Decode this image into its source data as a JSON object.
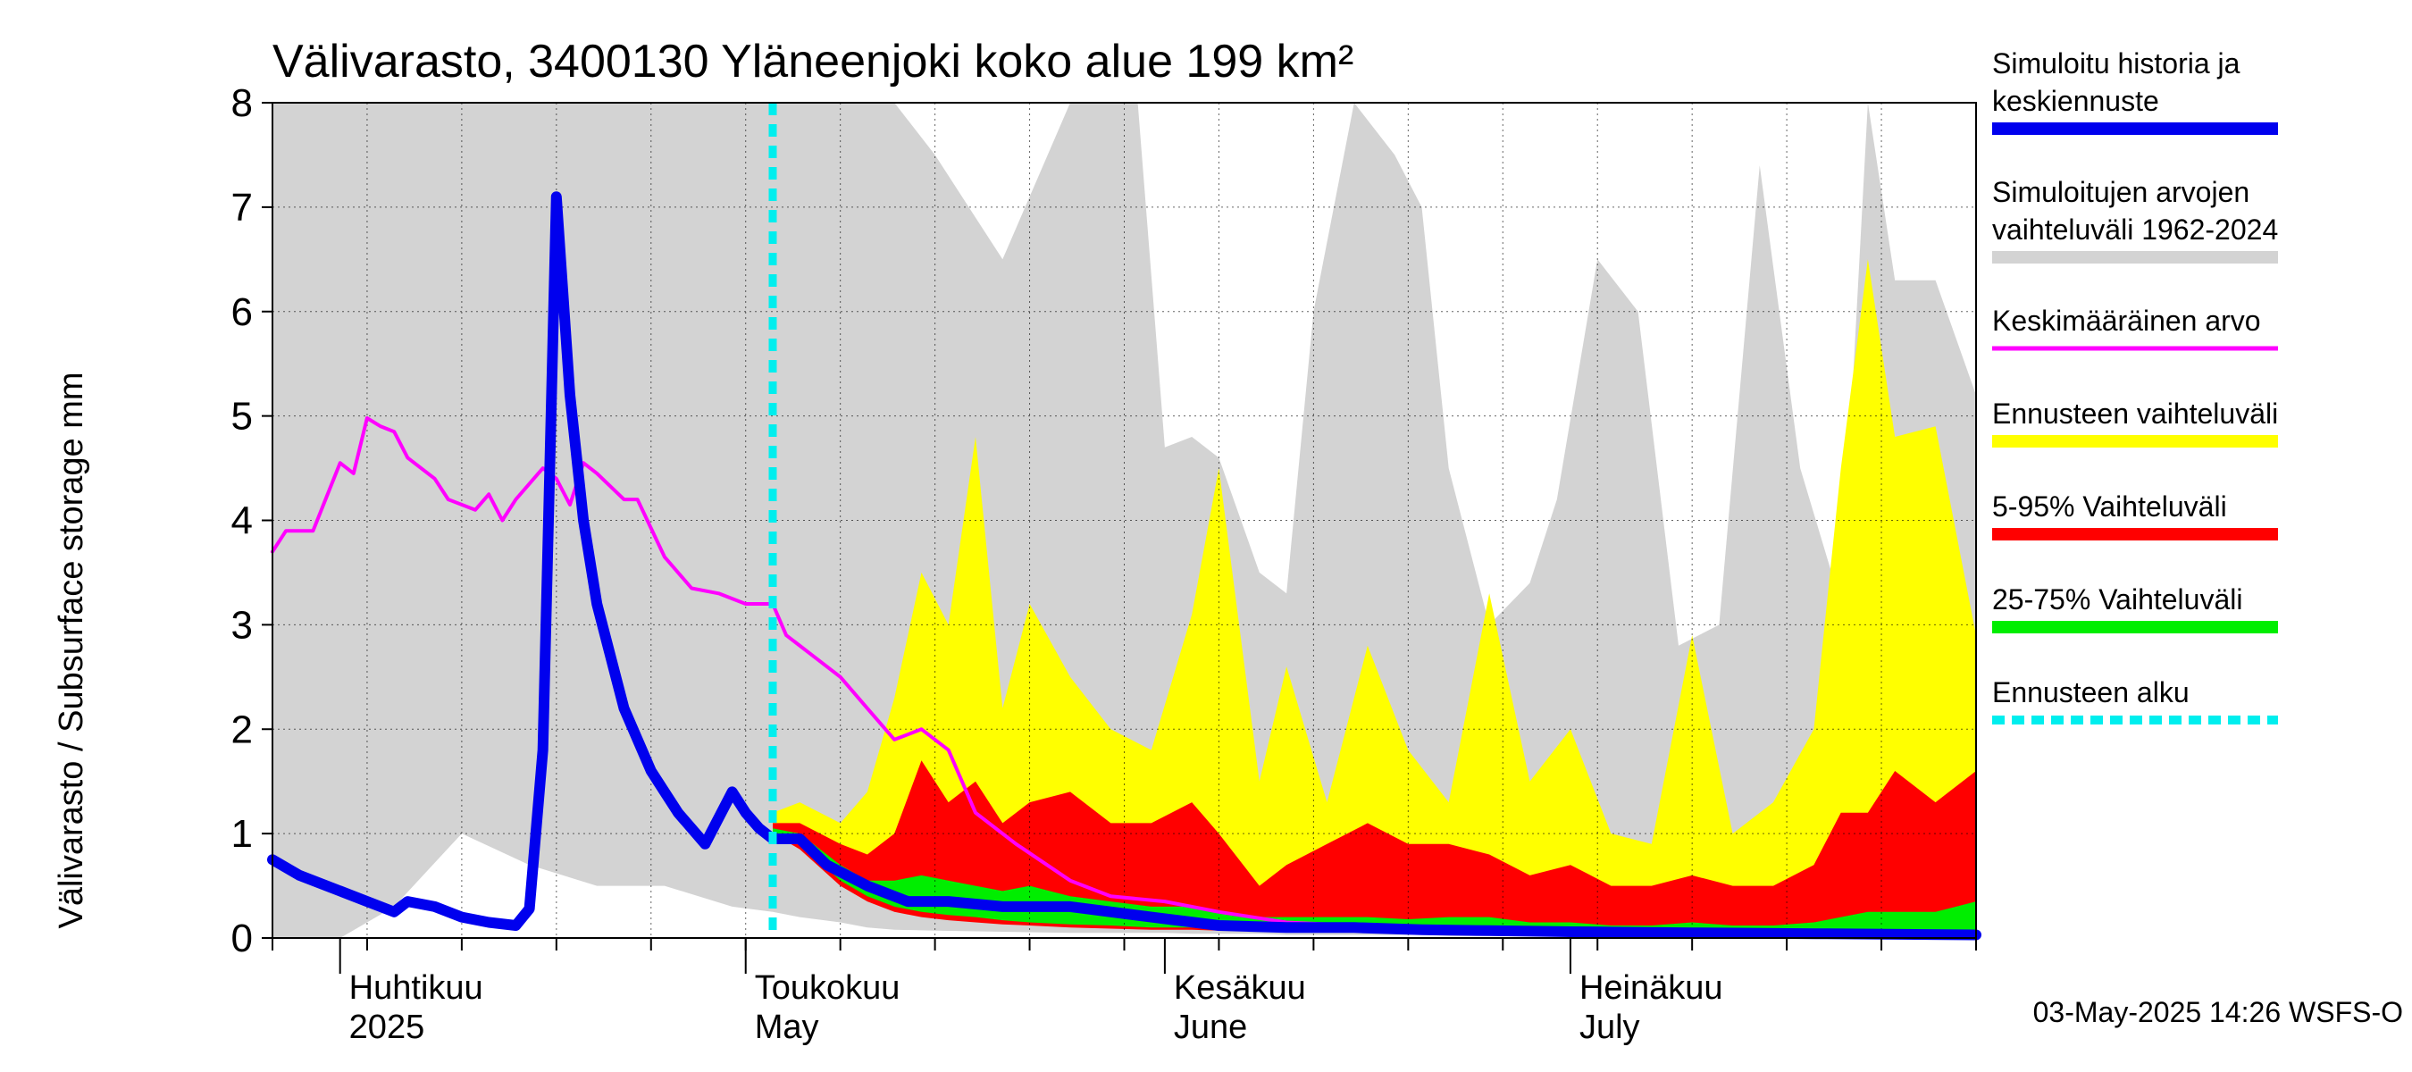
{
  "chart_data": {
    "type": "area",
    "title": "Välivarasto, 3400130 Yläneenjoki koko alue 199 km²",
    "ylabel": "Välivarasto / Subsurface storage  mm",
    "ylim": [
      0,
      8
    ],
    "yticks": [
      "0",
      "1",
      "2",
      "3",
      "4",
      "5",
      "6",
      "7",
      "8"
    ],
    "xlim": [
      "2025-03-27",
      "2025-07-31"
    ],
    "month_ticks": [
      {
        "date": "2025-04-01",
        "fi": "Huhtikuu",
        "en": "2025"
      },
      {
        "date": "2025-05-01",
        "fi": "Toukokuu",
        "en": "May"
      },
      {
        "date": "2025-06-01",
        "fi": "Kesäkuu",
        "en": "June"
      },
      {
        "date": "2025-07-01",
        "fi": "Heinäkuu",
        "en": "July"
      }
    ],
    "forecast_start": "2025-05-03",
    "footer": "03-May-2025 14:26 WSFS-O",
    "grid": true,
    "legend_position": "right",
    "colors": {
      "history_range": "#d3d3d3",
      "forecast_range": "#ffff00",
      "p5_95": "#ff0000",
      "p25_75": "#00ee00",
      "simulated": "#0000ee",
      "mean": "#ff00ff",
      "forecast_start": "#00eeee"
    },
    "legend": [
      {
        "key": "simulated",
        "lines": [
          "Simuloitu historia ja",
          "keskiennuste"
        ]
      },
      {
        "key": "history_range",
        "lines": [
          "Simuloitujen arvojen",
          "vaihteluväli 1962-2024"
        ]
      },
      {
        "key": "mean",
        "lines": [
          "Keskimääräinen arvo"
        ]
      },
      {
        "key": "forecast_range",
        "lines": [
          "Ennusteen vaihteluväli"
        ]
      },
      {
        "key": "p5_95",
        "lines": [
          "5-95% Vaihteluväli"
        ]
      },
      {
        "key": "p25_75",
        "lines": [
          "25-75% Vaihteluväli"
        ]
      },
      {
        "key": "forecast_start",
        "lines": [
          "Ennusteen alku"
        ]
      }
    ],
    "series": {
      "history_range": {
        "x": [
          "2025-03-27",
          "2025-04-01",
          "2025-04-05",
          "2025-04-10",
          "2025-04-15",
          "2025-04-20",
          "2025-04-25",
          "2025-04-30",
          "2025-05-03",
          "2025-05-05",
          "2025-05-08",
          "2025-05-10",
          "2025-05-12",
          "2025-05-15",
          "2025-05-20",
          "2025-05-25",
          "2025-05-30",
          "2025-06-01",
          "2025-06-03",
          "2025-06-05",
          "2025-06-08",
          "2025-06-10",
          "2025-06-12",
          "2025-06-15",
          "2025-06-18",
          "2025-06-20",
          "2025-06-22",
          "2025-06-25",
          "2025-06-28",
          "2025-06-30",
          "2025-07-03",
          "2025-07-06",
          "2025-07-09",
          "2025-07-12",
          "2025-07-15",
          "2025-07-18",
          "2025-07-21",
          "2025-07-23",
          "2025-07-25",
          "2025-07-28",
          "2025-07-31"
        ],
        "upper": [
          8,
          8,
          8,
          8,
          8,
          8,
          8,
          8,
          8,
          8,
          8,
          8,
          8,
          7.5,
          6.5,
          8,
          8,
          4.7,
          4.8,
          4.6,
          3.5,
          3.3,
          6,
          8,
          7.5,
          7,
          4.5,
          3,
          3.4,
          4.2,
          6.5,
          6,
          2.8,
          3,
          7.4,
          4.5,
          3.2,
          8,
          6.3,
          6.3,
          5.2
        ],
        "lower": [
          0,
          0,
          0.3,
          1,
          0.7,
          0.5,
          0.5,
          0.3,
          0.25,
          0.2,
          0.15,
          0.1,
          0.08,
          0.07,
          0.06,
          0.05,
          0.05,
          0.05,
          0.04,
          0.04,
          0.04,
          0.03,
          0.03,
          0.03,
          0.03,
          0.03,
          0.02,
          0.02,
          0.02,
          0.02,
          0.02,
          0.02,
          0.02,
          0.02,
          0.02,
          0.02,
          0.02,
          0.02,
          0.02,
          0.02,
          0.02
        ]
      },
      "forecast_range": {
        "x": [
          "2025-05-03",
          "2025-05-05",
          "2025-05-08",
          "2025-05-10",
          "2025-05-12",
          "2025-05-14",
          "2025-05-16",
          "2025-05-18",
          "2025-05-20",
          "2025-05-22",
          "2025-05-25",
          "2025-05-28",
          "2025-05-31",
          "2025-06-03",
          "2025-06-05",
          "2025-06-08",
          "2025-06-10",
          "2025-06-13",
          "2025-06-16",
          "2025-06-19",
          "2025-06-22",
          "2025-06-25",
          "2025-06-28",
          "2025-07-01",
          "2025-07-04",
          "2025-07-07",
          "2025-07-10",
          "2025-07-13",
          "2025-07-16",
          "2025-07-19",
          "2025-07-21",
          "2025-07-23",
          "2025-07-25",
          "2025-07-28",
          "2025-07-31"
        ],
        "upper": [
          1.2,
          1.3,
          1.1,
          1.4,
          2.3,
          3.5,
          3.0,
          4.8,
          2.2,
          3.2,
          2.5,
          2.0,
          1.8,
          3.1,
          4.5,
          1.5,
          2.6,
          1.3,
          2.8,
          1.8,
          1.3,
          3.3,
          1.5,
          2.0,
          1.0,
          0.9,
          2.9,
          1.0,
          1.3,
          2.0,
          4.5,
          6.5,
          4.8,
          4.9,
          2.9
        ],
        "lower": [
          1.0,
          0.9,
          0.6,
          0.45,
          0.35,
          0.3,
          0.25,
          0.2,
          0.18,
          0.15,
          0.13,
          0.12,
          0.1,
          0.1,
          0.09,
          0.08,
          0.08,
          0.07,
          0.07,
          0.06,
          0.06,
          0.06,
          0.05,
          0.05,
          0.05,
          0.05,
          0.04,
          0.04,
          0.04,
          0.04,
          0.04,
          0.04,
          0.04,
          0.04,
          0.04
        ]
      },
      "p5_95": {
        "x": [
          "2025-05-03",
          "2025-05-05",
          "2025-05-08",
          "2025-05-10",
          "2025-05-12",
          "2025-05-14",
          "2025-05-16",
          "2025-05-18",
          "2025-05-20",
          "2025-05-22",
          "2025-05-25",
          "2025-05-28",
          "2025-05-31",
          "2025-06-03",
          "2025-06-05",
          "2025-06-08",
          "2025-06-10",
          "2025-06-13",
          "2025-06-16",
          "2025-06-19",
          "2025-06-22",
          "2025-06-25",
          "2025-06-28",
          "2025-07-01",
          "2025-07-04",
          "2025-07-07",
          "2025-07-10",
          "2025-07-13",
          "2025-07-16",
          "2025-07-19",
          "2025-07-21",
          "2025-07-23",
          "2025-07-25",
          "2025-07-28",
          "2025-07-31"
        ],
        "upper": [
          1.1,
          1.1,
          0.9,
          0.8,
          1.0,
          1.7,
          1.3,
          1.5,
          1.1,
          1.3,
          1.4,
          1.1,
          1.1,
          1.3,
          1.0,
          0.5,
          0.7,
          0.9,
          1.1,
          0.9,
          0.9,
          0.8,
          0.6,
          0.7,
          0.5,
          0.5,
          0.6,
          0.5,
          0.5,
          0.7,
          1.2,
          1.2,
          1.6,
          1.3,
          1.6
        ],
        "lower": [
          1.0,
          0.85,
          0.5,
          0.35,
          0.25,
          0.2,
          0.17,
          0.15,
          0.13,
          0.12,
          0.1,
          0.09,
          0.08,
          0.08,
          0.07,
          0.07,
          0.06,
          0.06,
          0.05,
          0.05,
          0.05,
          0.05,
          0.04,
          0.04,
          0.04,
          0.04,
          0.04,
          0.03,
          0.03,
          0.03,
          0.03,
          0.03,
          0.03,
          0.03,
          0.03
        ]
      },
      "p25_75": {
        "x": [
          "2025-05-03",
          "2025-05-05",
          "2025-05-08",
          "2025-05-10",
          "2025-05-12",
          "2025-05-14",
          "2025-05-16",
          "2025-05-18",
          "2025-05-20",
          "2025-05-22",
          "2025-05-25",
          "2025-05-28",
          "2025-05-31",
          "2025-06-03",
          "2025-06-05",
          "2025-06-08",
          "2025-06-10",
          "2025-06-13",
          "2025-06-16",
          "2025-06-19",
          "2025-06-22",
          "2025-06-25",
          "2025-06-28",
          "2025-07-01",
          "2025-07-04",
          "2025-07-07",
          "2025-07-10",
          "2025-07-13",
          "2025-07-16",
          "2025-07-19",
          "2025-07-21",
          "2025-07-23",
          "2025-07-25",
          "2025-07-28",
          "2025-07-31"
        ],
        "upper": [
          1.05,
          1.0,
          0.7,
          0.55,
          0.55,
          0.6,
          0.55,
          0.5,
          0.45,
          0.5,
          0.4,
          0.35,
          0.3,
          0.3,
          0.25,
          0.2,
          0.2,
          0.2,
          0.2,
          0.18,
          0.2,
          0.2,
          0.15,
          0.15,
          0.12,
          0.12,
          0.15,
          0.12,
          0.12,
          0.15,
          0.2,
          0.25,
          0.25,
          0.25,
          0.35
        ],
        "lower": [
          1.0,
          0.9,
          0.55,
          0.4,
          0.3,
          0.25,
          0.22,
          0.2,
          0.17,
          0.15,
          0.13,
          0.12,
          0.1,
          0.1,
          0.09,
          0.08,
          0.08,
          0.07,
          0.07,
          0.06,
          0.06,
          0.06,
          0.05,
          0.05,
          0.05,
          0.05,
          0.05,
          0.04,
          0.04,
          0.04,
          0.04,
          0.04,
          0.04,
          0.04,
          0.04
        ]
      },
      "simulated": {
        "x": [
          "2025-03-27",
          "2025-03-29",
          "2025-04-01",
          "2025-04-03",
          "2025-04-05",
          "2025-04-06",
          "2025-04-08",
          "2025-04-10",
          "2025-04-12",
          "2025-04-14",
          "2025-04-15",
          "2025-04-16",
          "2025-04-17",
          "2025-04-18",
          "2025-04-19",
          "2025-04-20",
          "2025-04-22",
          "2025-04-24",
          "2025-04-26",
          "2025-04-28",
          "2025-04-30",
          "2025-05-01",
          "2025-05-02",
          "2025-05-03",
          "2025-05-05",
          "2025-05-07",
          "2025-05-10",
          "2025-05-13",
          "2025-05-16",
          "2025-05-20",
          "2025-05-25",
          "2025-05-31",
          "2025-06-05",
          "2025-06-10",
          "2025-06-15",
          "2025-06-20",
          "2025-06-25",
          "2025-07-01",
          "2025-07-10",
          "2025-07-20",
          "2025-07-31"
        ],
        "values": [
          0.75,
          0.6,
          0.45,
          0.35,
          0.25,
          0.35,
          0.3,
          0.2,
          0.15,
          0.12,
          0.28,
          1.8,
          7.1,
          5.2,
          4.0,
          3.2,
          2.2,
          1.6,
          1.2,
          0.9,
          1.4,
          1.2,
          1.05,
          0.95,
          0.95,
          0.7,
          0.5,
          0.35,
          0.35,
          0.3,
          0.3,
          0.2,
          0.12,
          0.1,
          0.1,
          0.08,
          0.07,
          0.06,
          0.05,
          0.04,
          0.03
        ]
      },
      "mean": {
        "x": [
          "2025-03-27",
          "2025-03-28",
          "2025-03-30",
          "2025-04-01",
          "2025-04-02",
          "2025-04-03",
          "2025-04-04",
          "2025-04-05",
          "2025-04-06",
          "2025-04-08",
          "2025-04-09",
          "2025-04-11",
          "2025-04-12",
          "2025-04-13",
          "2025-04-14",
          "2025-04-16",
          "2025-04-17",
          "2025-04-18",
          "2025-04-19",
          "2025-04-20",
          "2025-04-22",
          "2025-04-23",
          "2025-04-25",
          "2025-04-27",
          "2025-04-29",
          "2025-05-01",
          "2025-05-03",
          "2025-05-04",
          "2025-05-06",
          "2025-05-08",
          "2025-05-10",
          "2025-05-12",
          "2025-05-14",
          "2025-05-16",
          "2025-05-18",
          "2025-05-21",
          "2025-05-25",
          "2025-05-28",
          "2025-06-01",
          "2025-06-05",
          "2025-06-10",
          "2025-06-15",
          "2025-06-20",
          "2025-06-25",
          "2025-07-01",
          "2025-07-10",
          "2025-07-20",
          "2025-07-31"
        ],
        "values": [
          3.7,
          3.9,
          3.9,
          4.55,
          4.45,
          4.98,
          4.9,
          4.85,
          4.6,
          4.4,
          4.2,
          4.1,
          4.25,
          4.0,
          4.2,
          4.5,
          4.4,
          4.15,
          4.55,
          4.45,
          4.2,
          4.2,
          3.65,
          3.35,
          3.3,
          3.2,
          3.2,
          2.9,
          2.7,
          2.5,
          2.2,
          1.9,
          2.0,
          1.8,
          1.2,
          0.9,
          0.55,
          0.4,
          0.35,
          0.25,
          0.15,
          0.12,
          0.1,
          0.08,
          0.07,
          0.06,
          0.05,
          0.05
        ]
      }
    }
  }
}
